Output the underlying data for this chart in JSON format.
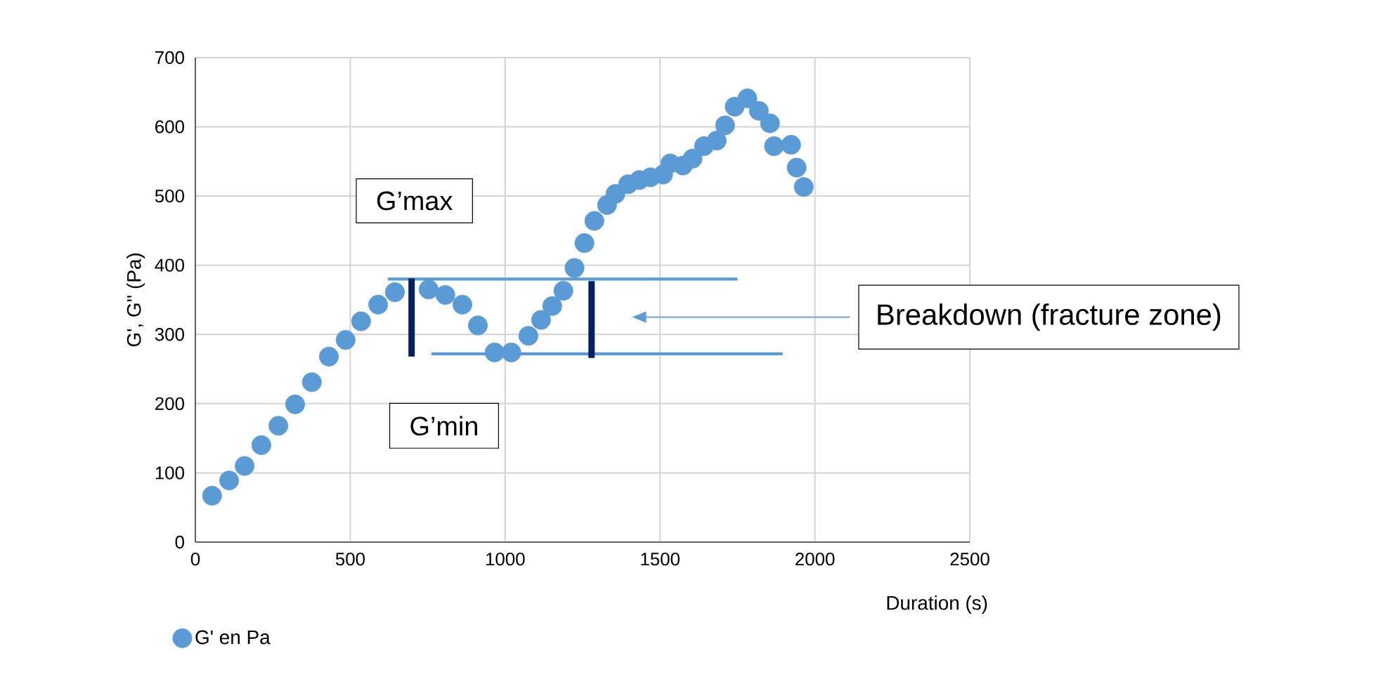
{
  "chart_data": {
    "type": "scatter",
    "xlabel": "Duration (s)",
    "ylabel": "G', G'' (Pa)",
    "xlim": [
      0,
      2500
    ],
    "xticks": [
      0,
      500,
      1000,
      1500,
      2000,
      2500
    ],
    "ylim": [
      0,
      700
    ],
    "yticks": [
      0,
      100,
      200,
      300,
      400,
      500,
      600,
      700
    ],
    "grid": true,
    "legend": "bottom left",
    "marker": "circle",
    "series": [
      {
        "name": "G' en Pa",
        "color": "#5b9bd5",
        "x": [
          54,
          109,
          159,
          213,
          268,
          322,
          376,
          431,
          485,
          535,
          590,
          644,
          753,
          807,
          862,
          912,
          966,
          1020,
          1075,
          1116,
          1152,
          1188,
          1224,
          1256,
          1288,
          1329,
          1356,
          1397,
          1433,
          1469,
          1510,
          1533,
          1574,
          1605,
          1642,
          1683,
          1710,
          1741,
          1782,
          1819,
          1855,
          1868,
          1923,
          1941,
          1964
        ],
        "values": [
          67,
          89,
          110,
          140,
          168,
          199,
          231,
          268,
          292,
          319,
          343,
          361,
          365,
          357,
          343,
          313,
          274,
          274,
          298,
          321,
          341,
          363,
          396,
          432,
          464,
          487,
          503,
          517,
          523,
          527,
          531,
          547,
          544,
          554,
          572,
          580,
          602,
          629,
          641,
          623,
          605,
          572,
          574,
          541,
          513
        ]
      },
      {
        "type": "line",
        "marker": "none",
        "color": "#5b9bd5",
        "x": [
          621,
          1750
        ],
        "values": [
          380,
          380
        ]
      },
      {
        "type": "line",
        "marker": "none",
        "color": "#5b9bd5",
        "x": [
          762,
          1896
        ],
        "values": [
          272,
          272
        ]
      },
      {
        "type": "line",
        "marker": "none",
        "color": "#002060",
        "x": [
          698,
          698
        ],
        "values": [
          381,
          268
        ]
      },
      {
        "type": "line",
        "marker": "none",
        "color": "#002060",
        "x": [
          1279,
          1279
        ],
        "values": [
          377,
          266
        ]
      }
    ],
    "annotations": [
      "G’max",
      "G’min",
      "Breakdown (fracture zone)"
    ]
  }
}
